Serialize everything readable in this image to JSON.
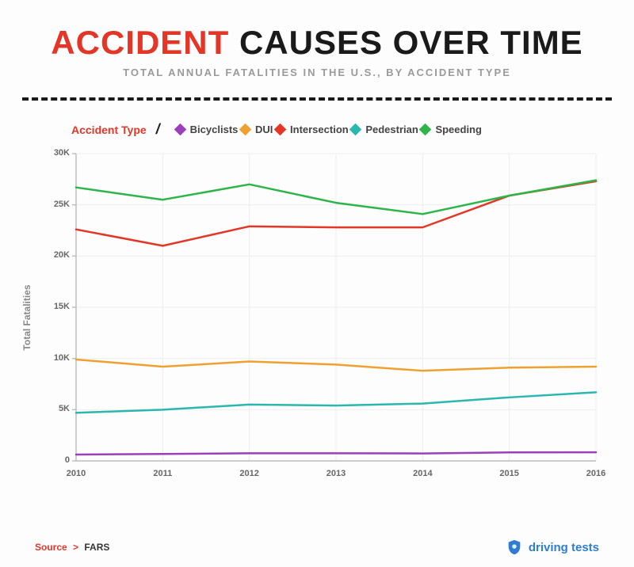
{
  "title_accent": "ACCIDENT",
  "title_rest": " CAUSES OVER TIME",
  "subtitle": "TOTAL ANNUAL FATALITIES IN THE U.S., BY ACCIDENT TYPE",
  "legend_title": "Accident Type",
  "chart": {
    "type": "line",
    "background_color": "#fdfdfd",
    "plot_bg": "#ffffff",
    "grid_color": "#eeeeee",
    "axis_color": "#bbbbbb",
    "line_width": 2.5,
    "x_categories": [
      "2010",
      "2011",
      "2012",
      "2013",
      "2014",
      "2015",
      "2016"
    ],
    "y_ticks": [
      0,
      5,
      10,
      15,
      20,
      25,
      30
    ],
    "y_tick_suffix": "K",
    "ylim": [
      0,
      30000
    ],
    "ylabel": "Total Fatalities",
    "series": {
      "bicyclists": {
        "label": "Bicyclists",
        "color": "#9b3fbf",
        "values": [
          620,
          680,
          740,
          749,
          729,
          829,
          840
        ]
      },
      "dui": {
        "label": "DUI",
        "color": "#f0a030",
        "values": [
          9900,
          9200,
          9700,
          9400,
          8800,
          9100,
          9200
        ]
      },
      "intersection": {
        "label": "Intersection",
        "color": "#e33627",
        "values": [
          22600,
          21000,
          22900,
          22800,
          22800,
          25900,
          27300
        ]
      },
      "pedestrian": {
        "label": "Pedestrian",
        "color": "#2bb6b0",
        "values": [
          4700,
          5000,
          5500,
          5400,
          5600,
          6200,
          6700
        ]
      },
      "speeding": {
        "label": "Speeding",
        "color": "#2db54a",
        "values": [
          26700,
          25500,
          27000,
          25200,
          24100,
          25900,
          27400
        ]
      }
    },
    "legend_order": [
      "bicyclists",
      "dui",
      "intersection",
      "pedestrian",
      "speeding"
    ]
  },
  "source_label": "Source",
  "source_name": "FARS",
  "brand_name": "driving tests",
  "colors": {
    "accent": "#e33627",
    "text": "#1a1a1a",
    "muted": "#9a9a9a",
    "brand": "#2f7dd1"
  },
  "typography": {
    "title_fontsize": 42,
    "title_weight": 900,
    "subtitle_fontsize": 13,
    "subtitle_letter_spacing": 2,
    "legend_fontsize": 13,
    "axis_tick_fontsize": 11,
    "ylabel_fontsize": 12
  }
}
